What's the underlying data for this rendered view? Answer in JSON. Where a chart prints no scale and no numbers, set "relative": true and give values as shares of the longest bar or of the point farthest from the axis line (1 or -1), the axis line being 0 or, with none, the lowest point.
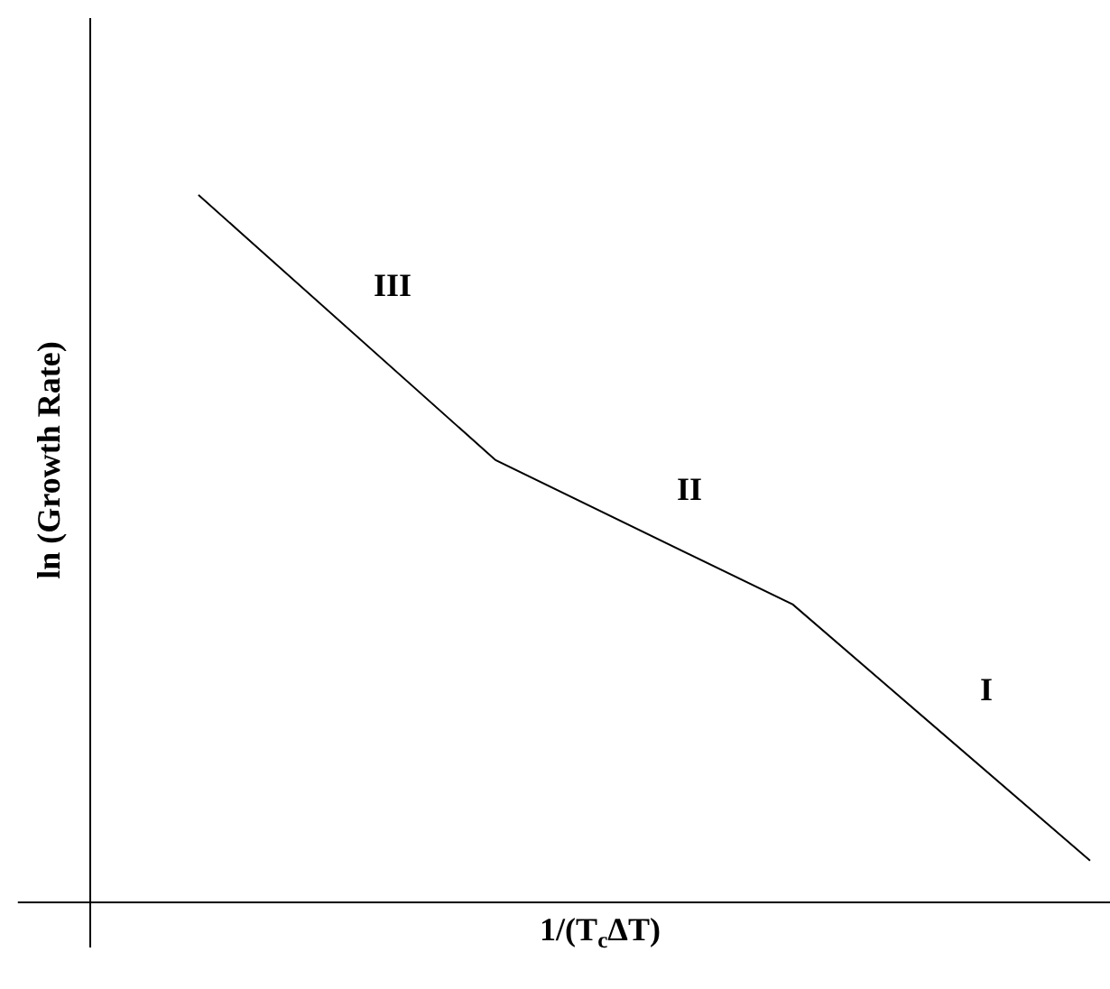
{
  "chart_data": {
    "type": "line",
    "relative": true,
    "xlabel": "1/(T$_{c}$ΔT)",
    "ylabel": "ln (Growth Rate)",
    "categories": [
      null,
      null,
      null,
      null
    ],
    "series": [
      {
        "color": "#000000",
        "values": [
          1,
          0.625,
          0.421,
          0.059
        ]
      }
    ],
    "annotations": [
      "III",
      "II",
      "I"
    ],
    "marker": "none"
  }
}
